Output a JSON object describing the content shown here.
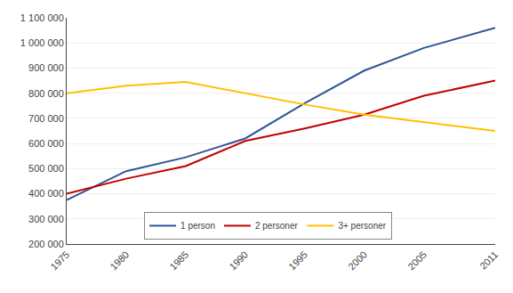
{
  "chart_data": {
    "type": "line",
    "x": [
      1975,
      1980,
      1985,
      1990,
      1995,
      2000,
      2005,
      2011
    ],
    "series": [
      {
        "name": "1 person",
        "color": "#2f5597",
        "values": [
          375000,
          490000,
          545000,
          620000,
          760000,
          890000,
          980000,
          1060000
        ]
      },
      {
        "name": "2 personer",
        "color": "#c00000",
        "values": [
          400000,
          460000,
          510000,
          610000,
          660000,
          715000,
          790000,
          850000
        ]
      },
      {
        "name": "3+ personer",
        "color": "#ffc000",
        "values": [
          800000,
          830000,
          845000,
          800000,
          755000,
          715000,
          685000,
          650000
        ]
      }
    ],
    "xlim": [
      1975,
      2011
    ],
    "xticks": [
      1975,
      1980,
      1985,
      1990,
      1995,
      2000,
      2005,
      2011
    ],
    "ylim": [
      200000,
      1100000
    ],
    "yticks": [
      {
        "value": 200000,
        "label": "200 000"
      },
      {
        "value": 300000,
        "label": "300 000"
      },
      {
        "value": 400000,
        "label": "400 000"
      },
      {
        "value": 500000,
        "label": "500 000"
      },
      {
        "value": 600000,
        "label": "600 000"
      },
      {
        "value": 700000,
        "label": "700 000"
      },
      {
        "value": 800000,
        "label": "800 000"
      },
      {
        "value": 900000,
        "label": "900 000"
      },
      {
        "value": 1000000,
        "label": "1 000 000"
      },
      {
        "value": 1100000,
        "label": "1 100 000"
      }
    ],
    "grid": true,
    "legend": "lower center"
  }
}
